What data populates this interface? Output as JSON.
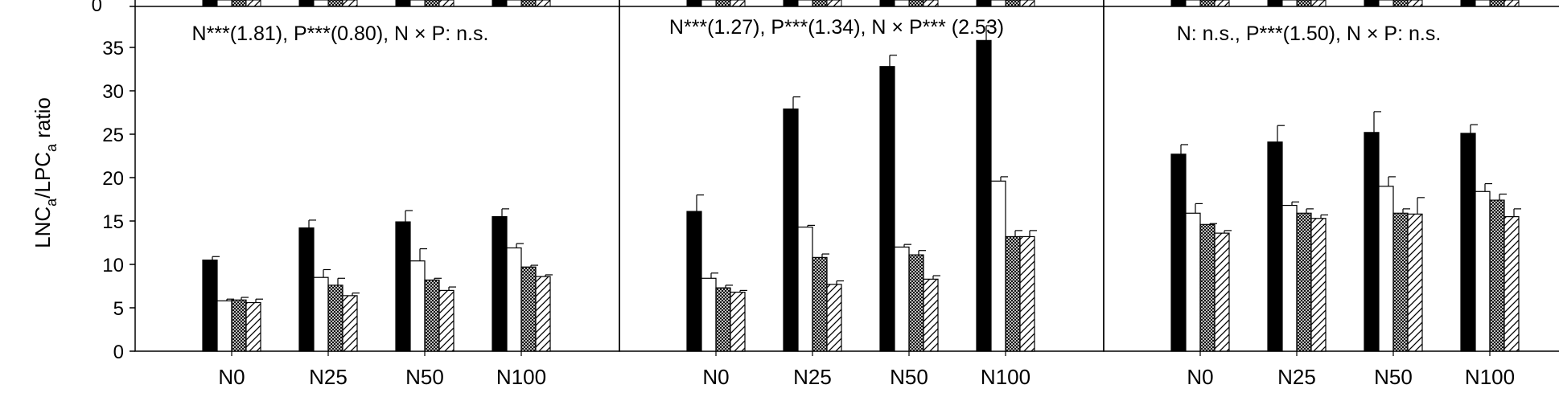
{
  "chart_data": [
    {
      "type": "bar",
      "annotation": "N***(1.81), P***(0.80), N × P: n.s.",
      "ylabel": "LNCa/LPCa ratio",
      "ylabel_parts": [
        "LNC",
        "a",
        "/LPC",
        "a",
        " ratio"
      ],
      "yticks": [
        "0",
        "5",
        "10",
        "15",
        "20",
        "25",
        "30",
        "35"
      ],
      "ylim": [
        0,
        39
      ],
      "categories": [
        "N0",
        "N25",
        "N50",
        "N100"
      ],
      "series": [
        {
          "fill": "black",
          "values": [
            10.5,
            14.2,
            14.9,
            15.5
          ],
          "errors": [
            0.4,
            0.9,
            1.3,
            0.9
          ]
        },
        {
          "fill": "white",
          "values": [
            5.8,
            8.5,
            10.4,
            11.9
          ],
          "errors": [
            0.2,
            0.9,
            1.4,
            0.5
          ]
        },
        {
          "fill": "crosshatch",
          "values": [
            5.9,
            7.6,
            8.2,
            9.7
          ],
          "errors": [
            0.3,
            0.8,
            0.2,
            0.2
          ]
        },
        {
          "fill": "diagonal",
          "values": [
            5.6,
            6.4,
            7.0,
            8.6
          ],
          "errors": [
            0.4,
            0.3,
            0.4,
            0.2
          ]
        }
      ]
    },
    {
      "type": "bar",
      "annotation": "N***(1.27), P***(1.34), N × P*** (2.53)",
      "ylim": [
        0,
        39
      ],
      "categories": [
        "N0",
        "N25",
        "N50",
        "N100"
      ],
      "series": [
        {
          "fill": "black",
          "values": [
            16.1,
            27.9,
            32.8,
            35.8
          ],
          "errors": [
            1.9,
            1.4,
            1.3,
            1.7
          ]
        },
        {
          "fill": "white",
          "values": [
            8.4,
            14.3,
            12.0,
            19.6
          ],
          "errors": [
            0.6,
            0.2,
            0.3,
            0.5
          ]
        },
        {
          "fill": "crosshatch",
          "values": [
            7.3,
            10.8,
            11.1,
            13.2
          ],
          "errors": [
            0.3,
            0.4,
            0.5,
            0.7
          ]
        },
        {
          "fill": "diagonal",
          "values": [
            6.8,
            7.7,
            8.3,
            13.2
          ],
          "errors": [
            0.2,
            0.4,
            0.4,
            0.7
          ]
        }
      ]
    },
    {
      "type": "bar",
      "annotation": "N: n.s., P***(1.50), N × P: n.s.",
      "ylim": [
        0,
        39
      ],
      "categories": [
        "N0",
        "N25",
        "N50",
        "N100"
      ],
      "series": [
        {
          "fill": "black",
          "values": [
            22.7,
            24.1,
            25.2,
            25.1
          ],
          "errors": [
            1.1,
            1.9,
            2.4,
            1.0
          ]
        },
        {
          "fill": "white",
          "values": [
            15.9,
            16.8,
            19.0,
            18.4
          ],
          "errors": [
            1.1,
            0.4,
            1.1,
            0.9
          ]
        },
        {
          "fill": "crosshatch",
          "values": [
            14.6,
            15.9,
            15.9,
            17.4
          ],
          "errors": [
            0.1,
            0.5,
            0.5,
            0.7
          ]
        },
        {
          "fill": "diagonal",
          "values": [
            13.6,
            15.3,
            15.8,
            15.5
          ],
          "errors": [
            0.3,
            0.4,
            1.9,
            0.9
          ]
        }
      ]
    }
  ],
  "top_axis_zero_label": "0"
}
